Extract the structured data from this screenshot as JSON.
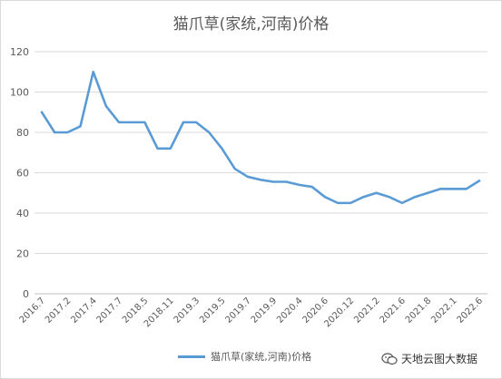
{
  "chart_data": {
    "type": "line",
    "title": "猫爪草(家统,河南)价格",
    "xlabel": "",
    "ylabel": "",
    "ylim": [
      0,
      120
    ],
    "yticks": [
      "0",
      "20",
      "40",
      "60",
      "80",
      "100",
      "120"
    ],
    "grid": true,
    "legend_position": "bottom",
    "color": "#5b9bd5",
    "x": [
      "2016.7",
      "",
      "2017.2",
      "",
      "2017.4",
      "",
      "2017.7",
      "",
      "2018.5",
      "",
      "2018.11",
      "",
      "2019.3",
      "",
      "2019.5",
      "",
      "2019.7",
      "",
      "2019.9",
      "",
      "2020.4",
      "",
      "2020.6",
      "",
      "2020.12",
      "",
      "2021.2",
      "",
      "2021.6",
      "",
      "2021.8",
      "",
      "2022.1",
      "",
      "2022.6"
    ],
    "x_tick_labels": [
      "2016.7",
      "2017.2",
      "2017.4",
      "2017.7",
      "2018.5",
      "2018.11",
      "2019.3",
      "2019.5",
      "2019.7",
      "2019.9",
      "2020.4",
      "2020.6",
      "2020.12",
      "2021.2",
      "2021.6",
      "2021.8",
      "2022.1",
      "2022.6"
    ],
    "series": [
      {
        "name": "猫爪草(家统,河南)价格",
        "values": [
          90,
          80,
          80,
          83,
          110,
          93,
          85,
          85,
          85,
          72,
          72,
          85,
          85,
          80,
          72,
          62,
          58,
          56.5,
          55.5,
          55.5,
          54,
          53,
          48,
          45,
          45,
          48,
          50,
          48,
          45,
          48,
          50,
          52,
          52,
          52,
          56
        ]
      }
    ]
  },
  "legend": {
    "label": "猫爪草(家统,河南)价格"
  },
  "watermark": {
    "text": "天地云图大数据",
    "icon": "wechat-icon"
  }
}
